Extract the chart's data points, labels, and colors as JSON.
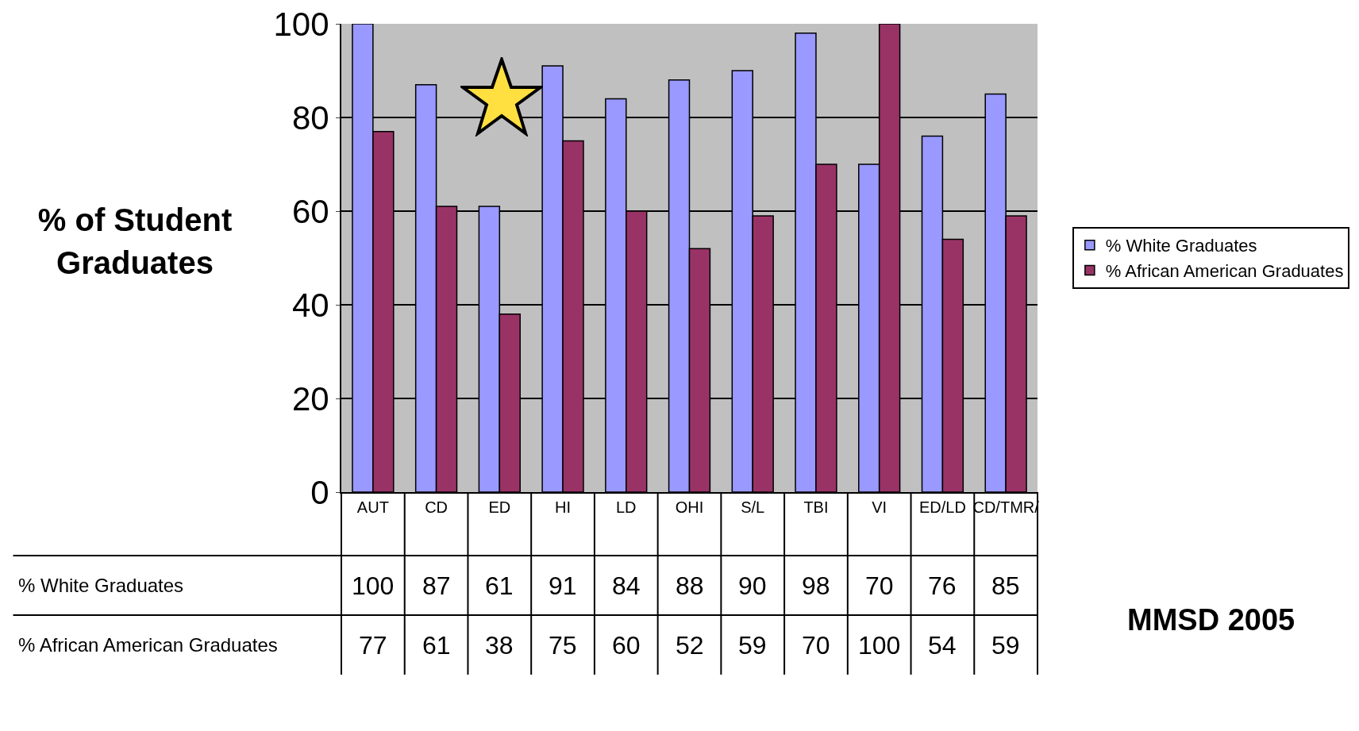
{
  "chart_data": {
    "type": "bar",
    "ylabel": "% of Student Graduates",
    "categories": [
      "AUT",
      "CD",
      "ED",
      "HI",
      "LD",
      "OHI",
      "S/L",
      "TBI",
      "VI",
      "ED/LD",
      "CD/TMR/"
    ],
    "series": [
      {
        "name": "% White Graduates",
        "color": "#9999ff",
        "values": [
          100,
          87,
          61,
          91,
          84,
          88,
          90,
          98,
          70,
          76,
          85
        ]
      },
      {
        "name": "% African American Graduates",
        "color": "#993366",
        "values": [
          77,
          61,
          38,
          75,
          60,
          52,
          59,
          70,
          100,
          54,
          59
        ]
      }
    ],
    "ylim": [
      0,
      100
    ],
    "yticks": [
      0,
      20,
      40,
      60,
      80,
      100
    ],
    "grid": "y",
    "legend": "right",
    "data_labels": true,
    "annotations": [
      "MMSD 2005"
    ]
  }
}
